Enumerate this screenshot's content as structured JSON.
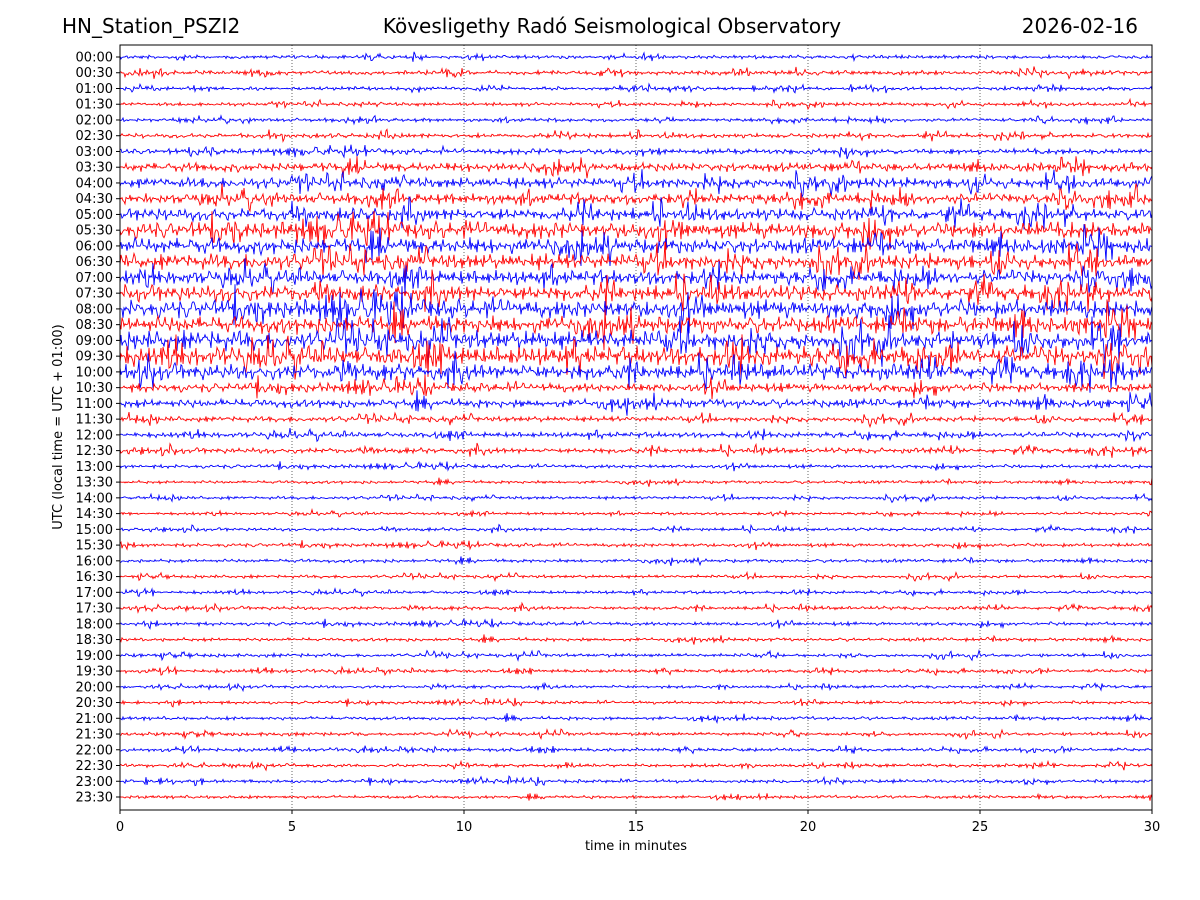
{
  "header": {
    "station": "HN_Station_PSZI2",
    "observatory": "Kövesligethy Radó Seismological Observatory",
    "date": "2026-02-16"
  },
  "chart_data": {
    "type": "line",
    "subtype": "helicorder",
    "xlabel": "time in minutes",
    "ylabel": "UTC (local time = UTC + 01:00)",
    "xlim": [
      0,
      30
    ],
    "x_ticks": [
      "0",
      "5",
      "10",
      "15",
      "20",
      "25",
      "30"
    ],
    "grid": "vertical dotted at each x tick",
    "series_colors": [
      "#0000ff",
      "#ff0000"
    ],
    "rows": [
      "00:00",
      "00:30",
      "01:00",
      "01:30",
      "02:00",
      "02:30",
      "03:00",
      "03:30",
      "04:00",
      "04:30",
      "05:00",
      "05:30",
      "06:00",
      "06:30",
      "07:00",
      "07:30",
      "08:00",
      "08:30",
      "09:00",
      "09:30",
      "10:00",
      "10:30",
      "11:00",
      "11:30",
      "12:00",
      "12:30",
      "13:00",
      "13:30",
      "14:00",
      "14:30",
      "15:00",
      "15:30",
      "16:00",
      "16:30",
      "17:00",
      "17:30",
      "18:00",
      "18:30",
      "19:00",
      "19:30",
      "20:00",
      "20:30",
      "21:00",
      "21:30",
      "22:00",
      "22:30",
      "23:00",
      "23:30"
    ],
    "relative_amplitude": [
      2,
      2.5,
      2,
      2,
      2,
      2.5,
      3,
      5,
      6,
      6,
      7,
      9,
      9,
      9,
      8,
      9,
      10,
      10,
      11,
      11,
      9,
      5,
      5,
      3,
      3,
      3,
      2,
      1.8,
      1.8,
      1.6,
      1.8,
      2,
      2,
      1.8,
      1.8,
      2,
      2,
      2,
      2,
      2,
      1.8,
      1.8,
      2,
      2,
      2,
      2,
      2,
      1.8
    ]
  }
}
